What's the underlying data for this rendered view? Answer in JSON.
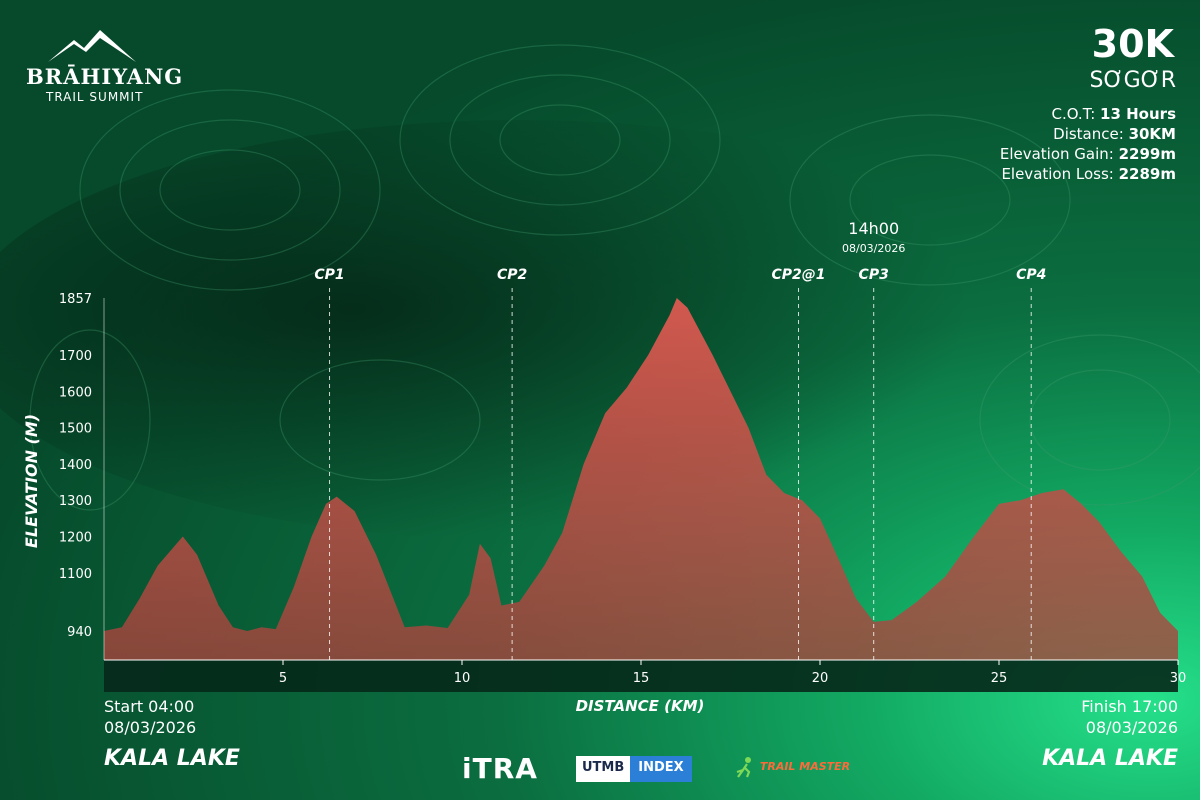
{
  "brand": {
    "name": "BRĀHIYANG",
    "subtitle": "TRAIL SUMMIT"
  },
  "race": {
    "distance_label": "30K",
    "name": "SƠGƠR",
    "stats": [
      {
        "label": "C.O.T: ",
        "value": "13 Hours"
      },
      {
        "label": "Distance: ",
        "value": "30KM"
      },
      {
        "label": "Elevation Gain: ",
        "value": "2299m"
      },
      {
        "label": "Elevation Loss: ",
        "value": "2289m"
      }
    ]
  },
  "start": {
    "time": "Start 04:00",
    "date": "08/03/2026",
    "location": "KALA LAKE"
  },
  "finish": {
    "time": "Finish 17:00",
    "date": "08/03/2026",
    "location": "KALA LAKE"
  },
  "sponsors": {
    "itra": "iTRA",
    "utmb": "UTMB",
    "index": "INDEX",
    "trailmaster": "TRAIL MASTER"
  },
  "colors": {
    "fill": "#d9544c",
    "bg_dark": "#064a2b",
    "bg_light": "#25e08a"
  },
  "chart_data": {
    "type": "area",
    "xlabel": "DISTANCE (KM)",
    "ylabel": "ELEVATION (M)",
    "xlim": [
      0,
      30
    ],
    "ylim": [
      860,
      1857
    ],
    "xticks": [
      5,
      10,
      15,
      20,
      25,
      30
    ],
    "yticks": [
      940,
      1100,
      1200,
      1300,
      1400,
      1500,
      1600,
      1700,
      1857
    ],
    "grid": false,
    "points": [
      [
        0,
        940
      ],
      [
        0.5,
        950
      ],
      [
        1,
        1030
      ],
      [
        1.5,
        1120
      ],
      [
        2.2,
        1200
      ],
      [
        2.6,
        1150
      ],
      [
        3.2,
        1010
      ],
      [
        3.6,
        950
      ],
      [
        4.0,
        940
      ],
      [
        4.4,
        950
      ],
      [
        4.8,
        945
      ],
      [
        5.3,
        1060
      ],
      [
        5.8,
        1200
      ],
      [
        6.2,
        1290
      ],
      [
        6.5,
        1310
      ],
      [
        7.0,
        1270
      ],
      [
        7.6,
        1150
      ],
      [
        8.0,
        1050
      ],
      [
        8.4,
        950
      ],
      [
        9.0,
        955
      ],
      [
        9.6,
        948
      ],
      [
        10.2,
        1040
      ],
      [
        10.5,
        1180
      ],
      [
        10.8,
        1140
      ],
      [
        11.1,
        1010
      ],
      [
        11.6,
        1020
      ],
      [
        12.3,
        1120
      ],
      [
        12.8,
        1210
      ],
      [
        13.4,
        1400
      ],
      [
        14.0,
        1540
      ],
      [
        14.6,
        1610
      ],
      [
        15.2,
        1700
      ],
      [
        15.8,
        1810
      ],
      [
        16.0,
        1857
      ],
      [
        16.3,
        1830
      ],
      [
        17.0,
        1700
      ],
      [
        17.6,
        1580
      ],
      [
        18.0,
        1500
      ],
      [
        18.5,
        1370
      ],
      [
        19.0,
        1320
      ],
      [
        19.5,
        1300
      ],
      [
        20.0,
        1250
      ],
      [
        20.6,
        1120
      ],
      [
        21.0,
        1030
      ],
      [
        21.5,
        965
      ],
      [
        22.0,
        970
      ],
      [
        22.7,
        1020
      ],
      [
        23.5,
        1090
      ],
      [
        24.3,
        1200
      ],
      [
        25.0,
        1290
      ],
      [
        25.6,
        1300
      ],
      [
        26.2,
        1320
      ],
      [
        26.8,
        1330
      ],
      [
        27.3,
        1290
      ],
      [
        27.8,
        1240
      ],
      [
        28.4,
        1160
      ],
      [
        29.0,
        1090
      ],
      [
        29.5,
        990
      ],
      [
        30.0,
        940
      ]
    ],
    "checkpoints": [
      {
        "name": "CP1",
        "km": 6.3
      },
      {
        "name": "CP2",
        "km": 11.4
      },
      {
        "name": "CP2@1",
        "km": 19.4
      },
      {
        "name": "CP3",
        "km": 21.5
      },
      {
        "name": "CP4",
        "km": 25.9
      }
    ],
    "cutoff": {
      "time": "14h00",
      "date": "08/03/2026",
      "checkpoint": "CP3"
    }
  }
}
